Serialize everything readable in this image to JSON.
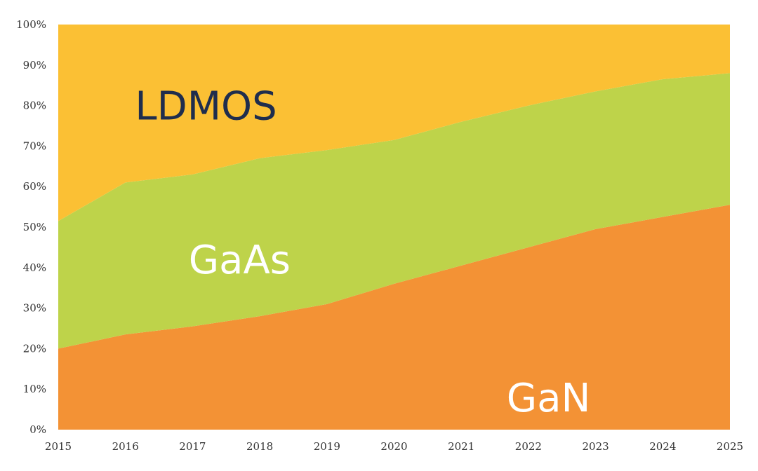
{
  "chart_data": {
    "type": "area",
    "stacked": true,
    "x": [
      2015,
      2016,
      2017,
      2018,
      2019,
      2020,
      2021,
      2022,
      2023,
      2024,
      2025
    ],
    "ylim": [
      0,
      100
    ],
    "y_ticks": [
      "0%",
      "10%",
      "20%",
      "30%",
      "40%",
      "50%",
      "60%",
      "70%",
      "80%",
      "90%",
      "100%"
    ],
    "x_ticks": [
      "2015",
      "2016",
      "2017",
      "2018",
      "2019",
      "2020",
      "2021",
      "2022",
      "2023",
      "2024",
      "2025"
    ],
    "series": [
      {
        "name": "GaN",
        "color": "#f39235",
        "values": [
          20,
          23.5,
          25.5,
          28,
          31,
          36,
          40.5,
          45,
          49.5,
          52.5,
          55.5
        ]
      },
      {
        "name": "GaAs",
        "color": "#bed34a",
        "values": [
          31.5,
          37.5,
          37.5,
          39,
          38,
          35.5,
          35.5,
          35,
          34,
          34,
          32.5
        ]
      },
      {
        "name": "LDMOS",
        "color": "#fbc034",
        "values": [
          48.5,
          39,
          37,
          33,
          31,
          28.5,
          24,
          20,
          16.5,
          13.5,
          12
        ]
      }
    ],
    "series_label_colors": {
      "GaN": "#ffffff",
      "GaAs": "#ffffff",
      "LDMOS": "#1f2d4d"
    }
  }
}
